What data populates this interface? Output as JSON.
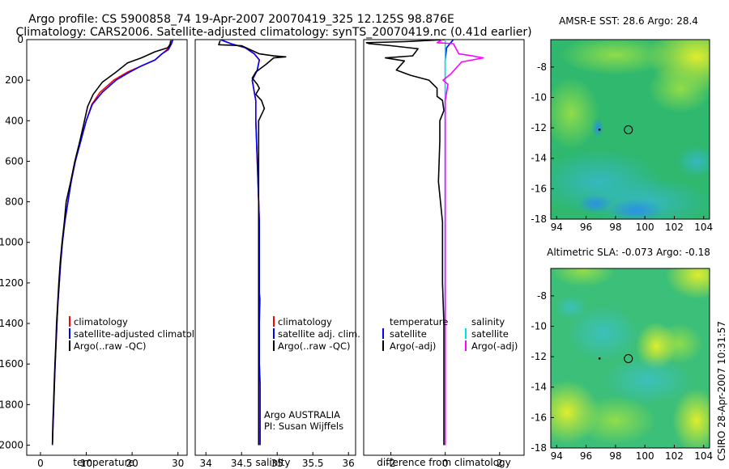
{
  "title": {
    "line1": "Argo profile: CS 5900858_74 19-Apr-2007 20070419_325 12.125S 98.876E",
    "line2": "Climatology: CARS2006. Satellite-adjusted climatology: synTS_20070419.nc (0.41d earlier)"
  },
  "colors": {
    "climatology": "#ff0000",
    "satellite": "#0000ff",
    "argo": "#000000",
    "sat_salt": "#00e0e0",
    "argo_salt": "#ff00ff"
  },
  "chart_data": [
    {
      "type": "line",
      "xlabel": "temperature",
      "ylabel": "",
      "xlim": [
        -3,
        32
      ],
      "ylim": [
        2050,
        0
      ],
      "xticks": [
        "0",
        "10",
        "20",
        "30"
      ],
      "yticks": [
        "0",
        "200",
        "400",
        "600",
        "800",
        "1000",
        "1200",
        "1400",
        "1600",
        "1800",
        "2000"
      ],
      "legend": [
        "climatology",
        "satellite-adjusted climatology",
        "Argo(..raw -QC)"
      ],
      "series": [
        {
          "name": "climatology",
          "points": [
            [
              28.6,
              0
            ],
            [
              28.3,
              20
            ],
            [
              27.6,
              50
            ],
            [
              26.5,
              70
            ],
            [
              25,
              100
            ],
            [
              22,
              130
            ],
            [
              19,
              160
            ],
            [
              16,
              200
            ],
            [
              13,
              260
            ],
            [
              11.2,
              320
            ],
            [
              10,
              400
            ],
            [
              8.7,
              500
            ],
            [
              7.6,
              600
            ],
            [
              6.7,
              700
            ],
            [
              6.0,
              800
            ],
            [
              5.3,
              900
            ],
            [
              4.8,
              1000
            ],
            [
              4.4,
              1100
            ],
            [
              4.1,
              1200
            ],
            [
              3.8,
              1300
            ],
            [
              3.6,
              1400
            ],
            [
              3.4,
              1500
            ],
            [
              3.2,
              1600
            ],
            [
              3.05,
              1700
            ],
            [
              2.9,
              1800
            ],
            [
              2.75,
              1900
            ],
            [
              2.6,
              2000
            ]
          ]
        },
        {
          "name": "satellite-adjusted climatology",
          "points": [
            [
              28.9,
              0
            ],
            [
              28.6,
              20
            ],
            [
              27.9,
              50
            ],
            [
              26.5,
              70
            ],
            [
              25,
              100
            ],
            [
              22,
              130
            ],
            [
              19.5,
              160
            ],
            [
              16.5,
              200
            ],
            [
              13.5,
              260
            ],
            [
              11.3,
              320
            ],
            [
              10,
              400
            ],
            [
              8.8,
              500
            ],
            [
              7.6,
              600
            ],
            [
              6.7,
              700
            ],
            [
              6.0,
              800
            ],
            [
              5.3,
              900
            ],
            [
              4.8,
              1000
            ],
            [
              4.4,
              1100
            ],
            [
              4.1,
              1200
            ],
            [
              3.8,
              1300
            ],
            [
              3.6,
              1400
            ],
            [
              3.4,
              1500
            ],
            [
              3.2,
              1600
            ],
            [
              3.05,
              1700
            ],
            [
              2.9,
              1800
            ],
            [
              2.75,
              1900
            ],
            [
              2.6,
              2000
            ]
          ]
        },
        {
          "name": "Argo(..raw -QC)",
          "points": [
            [
              28.4,
              5
            ],
            [
              28.3,
              25
            ],
            [
              27.8,
              40
            ],
            [
              25,
              60
            ],
            [
              22,
              90
            ],
            [
              19,
              115
            ],
            [
              16.5,
              160
            ],
            [
              13.5,
              210
            ],
            [
              11.5,
              270
            ],
            [
              10.3,
              330
            ],
            [
              9.6,
              400
            ],
            [
              8.6,
              500
            ],
            [
              7.5,
              600
            ],
            [
              6.6,
              700
            ],
            [
              5.6,
              800
            ],
            [
              5.2,
              900
            ],
            [
              4.7,
              1000
            ],
            [
              4.3,
              1100
            ],
            [
              4.0,
              1200
            ],
            [
              3.75,
              1300
            ],
            [
              3.5,
              1400
            ],
            [
              3.35,
              1500
            ],
            [
              3.15,
              1600
            ],
            [
              3.0,
              1700
            ],
            [
              2.85,
              1800
            ],
            [
              2.7,
              1900
            ],
            [
              2.6,
              1995
            ]
          ]
        }
      ]
    },
    {
      "type": "line",
      "xlabel": "salinity",
      "ylabel": "",
      "xlim": [
        33.85,
        36.1
      ],
      "ylim": [
        2050,
        0
      ],
      "xticks": [
        "34",
        "34.5",
        "35",
        "35.5",
        "36"
      ],
      "yticks": [],
      "legend": [
        "climatology",
        "satellite adj. clim.",
        "Argo(..raw -QC)"
      ],
      "annotations": [
        "Argo AUSTRALIA",
        "PI: Susan Wijffels"
      ],
      "series": [
        {
          "name": "climatology",
          "points": [
            [
              34.21,
              0
            ],
            [
              34.35,
              20
            ],
            [
              34.55,
              40
            ],
            [
              34.68,
              70
            ],
            [
              34.75,
              100
            ],
            [
              34.72,
              150
            ],
            [
              34.65,
              200
            ],
            [
              34.68,
              260
            ],
            [
              34.7,
              300
            ],
            [
              34.7,
              400
            ],
            [
              34.72,
              600
            ],
            [
              34.75,
              900
            ],
            [
              34.75,
              1200
            ],
            [
              34.75,
              1250
            ],
            [
              34.76,
              1280
            ],
            [
              34.75,
              1400
            ],
            [
              34.75,
              1600
            ],
            [
              34.76,
              1700
            ],
            [
              34.76,
              2000
            ]
          ]
        },
        {
          "name": "satellite adj. clim.",
          "points": [
            [
              34.2,
              0
            ],
            [
              34.35,
              20
            ],
            [
              34.55,
              40
            ],
            [
              34.68,
              70
            ],
            [
              34.75,
              100
            ],
            [
              34.72,
              150
            ],
            [
              34.65,
              200
            ],
            [
              34.68,
              260
            ],
            [
              34.7,
              300
            ],
            [
              34.7,
              400
            ],
            [
              34.72,
              600
            ],
            [
              34.75,
              900
            ],
            [
              34.75,
              1200
            ],
            [
              34.75,
              1400
            ],
            [
              34.75,
              1600
            ],
            [
              34.76,
              1700
            ],
            [
              34.76,
              2000
            ]
          ]
        },
        {
          "name": "Argo(..raw -QC)",
          "points": [
            [
              34.2,
              5
            ],
            [
              34.18,
              25
            ],
            [
              34.5,
              30
            ],
            [
              34.75,
              70
            ],
            [
              34.95,
              80
            ],
            [
              35.12,
              85
            ],
            [
              34.95,
              90
            ],
            [
              34.85,
              120
            ],
            [
              34.7,
              160
            ],
            [
              34.65,
              190
            ],
            [
              34.72,
              220
            ],
            [
              34.75,
              240
            ],
            [
              34.7,
              270
            ],
            [
              34.78,
              300
            ],
            [
              34.82,
              340
            ],
            [
              34.74,
              400
            ],
            [
              34.74,
              500
            ],
            [
              34.74,
              700
            ],
            [
              34.74,
              900
            ],
            [
              34.74,
              1200
            ],
            [
              34.74,
              1500
            ],
            [
              34.74,
              1800
            ],
            [
              34.74,
              2000
            ]
          ]
        }
      ]
    },
    {
      "type": "line",
      "xlabel": "difference from climatology",
      "ylabel": "",
      "xlim": [
        -3,
        2.9
      ],
      "ylim": [
        2050,
        0
      ],
      "xticks": [
        "-2",
        "0",
        "2"
      ],
      "yticks": [],
      "legend": [
        "temperature",
        "satellite",
        "Argo(-adj)",
        "salinity",
        "satellite",
        "Argo(-adj)"
      ],
      "series": [
        {
          "name": "temperature satellite",
          "points": [
            [
              0.3,
              0
            ],
            [
              0.05,
              40
            ],
            [
              0,
              100
            ],
            [
              0,
              2000
            ]
          ]
        },
        {
          "name": "temperature Argo(-adj)",
          "points": [
            [
              0,
              0
            ],
            [
              -1.5,
              10
            ],
            [
              -2.9,
              15
            ],
            [
              -2.8,
              20
            ],
            [
              -2,
              30
            ],
            [
              -1.0,
              45
            ],
            [
              -1.2,
              80
            ],
            [
              -2.2,
              90
            ],
            [
              -1.5,
              105
            ],
            [
              -1.8,
              150
            ],
            [
              -1.3,
              175
            ],
            [
              -0.6,
              200
            ],
            [
              -0.3,
              240
            ],
            [
              -0.3,
              280
            ],
            [
              -0.1,
              300
            ],
            [
              -0.05,
              350
            ],
            [
              -0.2,
              400
            ],
            [
              -0.2,
              500
            ],
            [
              -0.25,
              700
            ],
            [
              -0.1,
              900
            ],
            [
              -0.1,
              1100
            ],
            [
              -0.1,
              1200
            ],
            [
              -0.05,
              1400
            ],
            [
              -0.05,
              1600
            ],
            [
              -0.05,
              2000
            ]
          ]
        },
        {
          "name": "salinity satellite",
          "points": [
            [
              0,
              0
            ],
            [
              0,
              2000
            ]
          ]
        },
        {
          "name": "salinity Argo(-adj)",
          "points": [
            [
              -0.1,
              0
            ],
            [
              -0.3,
              15
            ],
            [
              0.3,
              20
            ],
            [
              0.5,
              70
            ],
            [
              1.0,
              80
            ],
            [
              1.4,
              90
            ],
            [
              0.6,
              110
            ],
            [
              0.2,
              170
            ],
            [
              -0.08,
              200
            ],
            [
              0.1,
              220
            ],
            [
              0.05,
              260
            ],
            [
              0,
              300
            ],
            [
              0,
              2000
            ]
          ]
        }
      ]
    },
    {
      "type": "heatmap",
      "title": "AMSR-E SST: 28.6 Argo: 28.4",
      "xlim": [
        93.6,
        104.4
      ],
      "ylim": [
        -18,
        -6.2
      ],
      "xticks": [
        "94",
        "96",
        "98",
        "100",
        "102",
        "104"
      ],
      "yticks": [
        "-8",
        "-10",
        "-12",
        "-14",
        "-16",
        "-18"
      ],
      "argo_position": [
        98.876,
        -12.125
      ]
    },
    {
      "type": "heatmap",
      "title": "Altimetric SLA: -0.073 Argo: -0.18",
      "xlim": [
        93.6,
        104.4
      ],
      "ylim": [
        -18,
        -6.2
      ],
      "xticks": [
        "94",
        "96",
        "98",
        "100",
        "102",
        "104"
      ],
      "yticks": [
        "-8",
        "-10",
        "-12",
        "-14",
        "-16",
        "-18"
      ],
      "argo_position": [
        98.876,
        -12.125
      ]
    }
  ],
  "credit": "CSIRO 28-Apr-2007 10:31:57"
}
